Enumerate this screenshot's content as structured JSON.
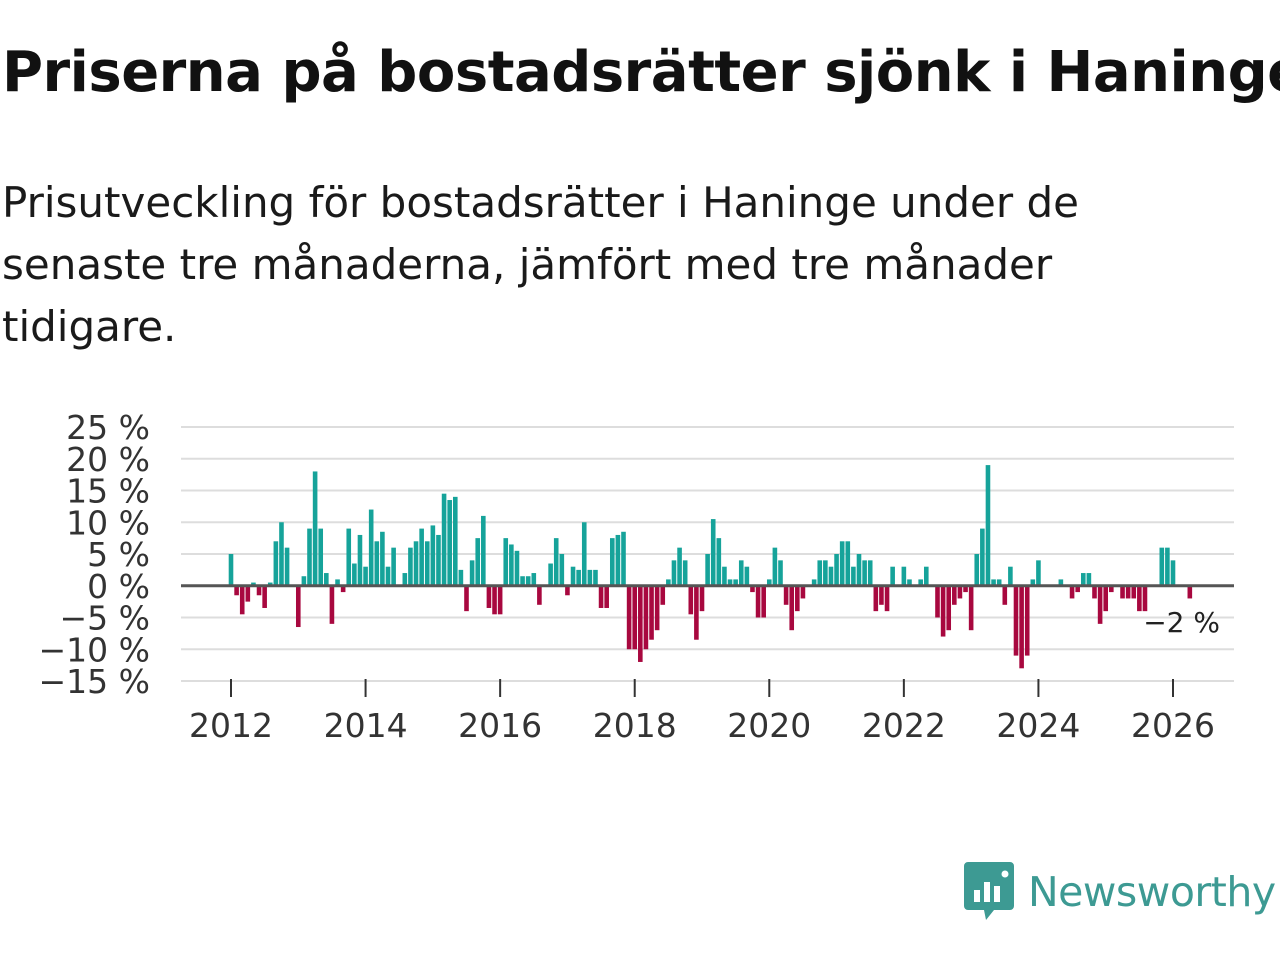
{
  "title": "Priserna på bostadsrätter sjönk i Haninge",
  "subtitle": "Prisutveckling för bostadsrätter i Haninge under de senaste tre månaderna, jämfört med tre månader tidigare.",
  "brand": {
    "name": "Newsworthy",
    "color": "#3d9a93"
  },
  "colors": {
    "positive": "#16a39a",
    "negative": "#a8083f",
    "grid": "#dddddd",
    "zero": "#555555"
  },
  "chart_data": {
    "type": "bar",
    "title": "Priserna på bostadsrätter sjönk i Haninge",
    "xlabel": "",
    "ylabel": "",
    "ylim": [
      -15,
      25
    ],
    "y_ticks": [
      25,
      20,
      15,
      10,
      5,
      0,
      -5,
      -10,
      -15
    ],
    "y_tick_labels": [
      "25 %",
      "20 %",
      "15 %",
      "10 %",
      "5 %",
      "0 %",
      "−5 %",
      "−10 %",
      "−15 %"
    ],
    "x_ticks": [
      2012,
      2014,
      2016,
      2018,
      2020,
      2022,
      2024,
      2026
    ],
    "x_tick_labels": [
      "2012",
      "2014",
      "2016",
      "2018",
      "2020",
      "2022",
      "2024",
      "2026"
    ],
    "start": "2012-01",
    "frequency": "monthly",
    "values": [
      5,
      -1.5,
      -4.5,
      -2.5,
      0.5,
      -1.5,
      -3.5,
      0.5,
      7,
      10,
      6,
      0,
      -6.5,
      1.5,
      9,
      18,
      9,
      2,
      -6,
      1,
      -1,
      9,
      3.5,
      8,
      3,
      12,
      7,
      8.5,
      3,
      6,
      0,
      2,
      6,
      7,
      9,
      7,
      9.5,
      8,
      14.5,
      13.5,
      14,
      2.5,
      -4,
      4,
      7.5,
      11,
      -3.5,
      -4.5,
      -4.5,
      7.5,
      6.5,
      5.5,
      1.5,
      1.5,
      2,
      -3,
      0,
      3.5,
      7.5,
      5,
      -1.5,
      3,
      2.5,
      10,
      2.5,
      2.5,
      -3.5,
      -3.5,
      7.5,
      8,
      8.5,
      -10,
      -10,
      -12,
      -10,
      -8.5,
      -7,
      -3,
      1,
      4,
      6,
      4,
      -4.5,
      -8.5,
      -4,
      5,
      10.5,
      7.5,
      3,
      1,
      1,
      4,
      3,
      -1,
      -5,
      -5,
      1,
      6,
      4,
      -3,
      -7,
      -4,
      -2,
      0,
      1,
      4,
      4,
      3,
      5,
      7,
      7,
      3,
      5,
      4,
      4,
      -4,
      -3,
      -4,
      3,
      0,
      3,
      1,
      0,
      1,
      3,
      0,
      -5,
      -8,
      -7,
      -3,
      -2,
      -1,
      -7,
      5,
      9,
      19,
      1,
      1,
      -3,
      3,
      -11,
      -13,
      -11,
      1,
      4,
      0,
      0,
      0,
      1,
      0,
      -2,
      -1,
      2,
      2,
      -2,
      -6,
      -4,
      -1,
      0,
      -2,
      -2,
      -2,
      -4,
      -4,
      0,
      0,
      6,
      6,
      4,
      0,
      0,
      -2
    ],
    "last_value_label": "−2 %"
  }
}
